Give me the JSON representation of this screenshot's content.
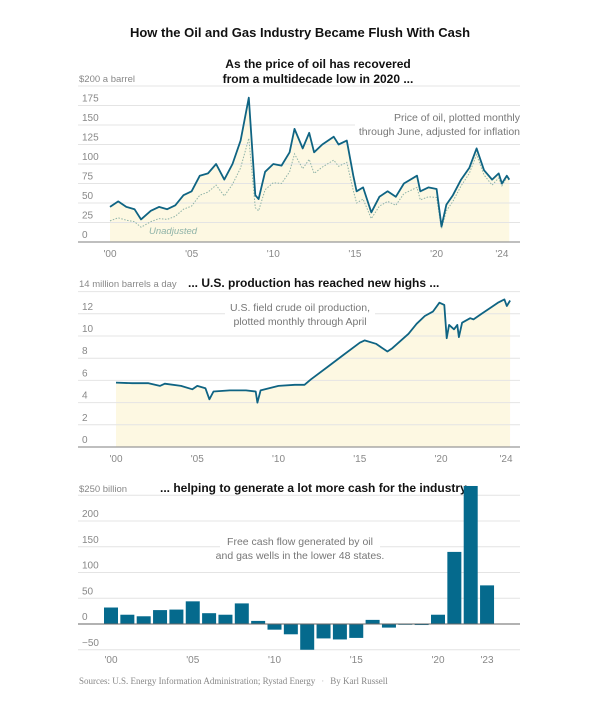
{
  "title": "How the Oil and Gas Industry Became Flush With Cash",
  "colors": {
    "line": "#0f6483",
    "fill": "#fdf8e2",
    "unadjusted": "#8fb3a8",
    "bar": "#056a8d"
  },
  "source": "Sources: U.S. Energy Information Administration; Rystad Energy",
  "byline": "By Karl Russell",
  "chart_data": [
    {
      "type": "line",
      "heading": [
        "As the price of oil has recovered",
        "from a multidecade low in 2020 ..."
      ],
      "ylabel": "$200 a barrel",
      "note": [
        "Price of oil, plotted monthly",
        "through June, adjusted for inflation"
      ],
      "ylim": [
        0,
        200
      ],
      "yticks": [
        "175",
        "150",
        "125",
        "100",
        "75",
        "50",
        "25",
        "0"
      ],
      "xticks": [
        "'00",
        "'05",
        "'10",
        "'15",
        "'20",
        "'24"
      ],
      "xtick_years": [
        2000,
        2005,
        2010,
        2015,
        2020,
        2024
      ],
      "grid": true,
      "series": [
        {
          "label": "",
          "points": [
            [
              2000.0,
              45
            ],
            [
              2000.5,
              52
            ],
            [
              2001.0,
              45
            ],
            [
              2001.5,
              42
            ],
            [
              2001.9,
              29
            ],
            [
              2002.5,
              40
            ],
            [
              2003.0,
              45
            ],
            [
              2003.5,
              42
            ],
            [
              2004.0,
              47
            ],
            [
              2004.5,
              60
            ],
            [
              2005.0,
              65
            ],
            [
              2005.5,
              85
            ],
            [
              2006.0,
              88
            ],
            [
              2006.5,
              100
            ],
            [
              2007.0,
              80
            ],
            [
              2007.5,
              100
            ],
            [
              2008.0,
              130
            ],
            [
              2008.5,
              185
            ],
            [
              2008.9,
              60
            ],
            [
              2009.1,
              55
            ],
            [
              2009.5,
              90
            ],
            [
              2010.0,
              100
            ],
            [
              2010.5,
              98
            ],
            [
              2011.0,
              115
            ],
            [
              2011.3,
              145
            ],
            [
              2011.8,
              120
            ],
            [
              2012.2,
              140
            ],
            [
              2012.5,
              115
            ],
            [
              2013.0,
              125
            ],
            [
              2013.7,
              135
            ],
            [
              2014.0,
              125
            ],
            [
              2014.5,
              130
            ],
            [
              2014.9,
              85
            ],
            [
              2015.1,
              65
            ],
            [
              2015.5,
              70
            ],
            [
              2016.0,
              38
            ],
            [
              2016.5,
              58
            ],
            [
              2017.0,
              65
            ],
            [
              2017.5,
              58
            ],
            [
              2018.0,
              75
            ],
            [
              2018.8,
              85
            ],
            [
              2019.0,
              65
            ],
            [
              2019.5,
              70
            ],
            [
              2020.0,
              68
            ],
            [
              2020.3,
              20
            ],
            [
              2020.6,
              48
            ],
            [
              2021.0,
              60
            ],
            [
              2021.5,
              80
            ],
            [
              2022.0,
              95
            ],
            [
              2022.45,
              120
            ],
            [
              2022.9,
              92
            ],
            [
              2023.4,
              80
            ],
            [
              2023.8,
              88
            ],
            [
              2024.0,
              75
            ],
            [
              2024.3,
              85
            ],
            [
              2024.45,
              80
            ]
          ]
        },
        {
          "label": "Unadjusted",
          "points": [
            [
              2000.0,
              27
            ],
            [
              2000.5,
              31
            ],
            [
              2001.0,
              28
            ],
            [
              2001.5,
              26
            ],
            [
              2001.9,
              19
            ],
            [
              2002.5,
              26
            ],
            [
              2003.0,
              30
            ],
            [
              2003.5,
              29
            ],
            [
              2004.0,
              33
            ],
            [
              2004.5,
              42
            ],
            [
              2005.0,
              46
            ],
            [
              2005.5,
              60
            ],
            [
              2006.0,
              64
            ],
            [
              2006.5,
              73
            ],
            [
              2007.0,
              59
            ],
            [
              2007.5,
              74
            ],
            [
              2008.0,
              95
            ],
            [
              2008.5,
              133
            ],
            [
              2008.9,
              44
            ],
            [
              2009.1,
              40
            ],
            [
              2009.5,
              67
            ],
            [
              2010.0,
              76
            ],
            [
              2010.5,
              75
            ],
            [
              2011.0,
              90
            ],
            [
              2011.3,
              113
            ],
            [
              2011.8,
              94
            ],
            [
              2012.2,
              106
            ],
            [
              2012.5,
              88
            ],
            [
              2013.0,
              96
            ],
            [
              2013.7,
              105
            ],
            [
              2014.0,
              97
            ],
            [
              2014.5,
              102
            ],
            [
              2014.9,
              66
            ],
            [
              2015.1,
              50
            ],
            [
              2015.5,
              55
            ],
            [
              2016.0,
              30
            ],
            [
              2016.5,
              46
            ],
            [
              2017.0,
              52
            ],
            [
              2017.5,
              47
            ],
            [
              2018.0,
              62
            ],
            [
              2018.8,
              70
            ],
            [
              2019.0,
              54
            ],
            [
              2019.5,
              58
            ],
            [
              2020.0,
              57
            ],
            [
              2020.3,
              17
            ],
            [
              2020.6,
              40
            ],
            [
              2021.0,
              52
            ],
            [
              2021.5,
              72
            ],
            [
              2022.0,
              88
            ],
            [
              2022.45,
              112
            ],
            [
              2022.9,
              86
            ],
            [
              2023.4,
              73
            ],
            [
              2023.8,
              82
            ],
            [
              2024.0,
              72
            ],
            [
              2024.3,
              83
            ],
            [
              2024.45,
              79
            ]
          ]
        }
      ]
    },
    {
      "type": "area",
      "heading": [
        "... U.S. production has reached new highs ..."
      ],
      "ylabel": "14 million barrels a day",
      "note": [
        "U.S. field crude oil production,",
        "plotted monthly through April"
      ],
      "ylim": [
        0,
        14
      ],
      "yticks": [
        "12",
        "10",
        "8",
        "6",
        "4",
        "2",
        "0"
      ],
      "xticks": [
        "'00",
        "'05",
        "'10",
        "'15",
        "'20",
        "'24"
      ],
      "xtick_years": [
        2000,
        2005,
        2010,
        2015,
        2020,
        2024
      ],
      "grid": true,
      "points": [
        [
          2000.0,
          5.8
        ],
        [
          2001.0,
          5.75
        ],
        [
          2002.0,
          5.75
        ],
        [
          2002.7,
          5.5
        ],
        [
          2003.0,
          5.7
        ],
        [
          2004.0,
          5.5
        ],
        [
          2004.7,
          5.2
        ],
        [
          2005.0,
          5.5
        ],
        [
          2005.5,
          5.3
        ],
        [
          2005.75,
          4.3
        ],
        [
          2006.0,
          5.0
        ],
        [
          2007.0,
          5.1
        ],
        [
          2008.0,
          5.1
        ],
        [
          2008.6,
          5.0
        ],
        [
          2008.7,
          4.0
        ],
        [
          2008.9,
          5.1
        ],
        [
          2010.0,
          5.5
        ],
        [
          2011.0,
          5.6
        ],
        [
          2011.6,
          5.6
        ],
        [
          2012.0,
          6.1
        ],
        [
          2013.0,
          7.2
        ],
        [
          2014.0,
          8.3
        ],
        [
          2015.0,
          9.4
        ],
        [
          2015.3,
          9.6
        ],
        [
          2016.0,
          9.3
        ],
        [
          2016.7,
          8.6
        ],
        [
          2017.0,
          8.9
        ],
        [
          2018.0,
          10.2
        ],
        [
          2018.5,
          11.1
        ],
        [
          2019.0,
          11.8
        ],
        [
          2019.5,
          12.2
        ],
        [
          2019.9,
          13.0
        ],
        [
          2020.2,
          12.8
        ],
        [
          2020.35,
          9.8
        ],
        [
          2020.5,
          11.0
        ],
        [
          2020.8,
          10.6
        ],
        [
          2021.0,
          11.0
        ],
        [
          2021.1,
          9.9
        ],
        [
          2021.3,
          11.2
        ],
        [
          2021.8,
          11.6
        ],
        [
          2022.0,
          11.5
        ],
        [
          2022.5,
          12.0
        ],
        [
          2023.0,
          12.5
        ],
        [
          2023.5,
          13.0
        ],
        [
          2023.9,
          13.3
        ],
        [
          2024.05,
          12.7
        ],
        [
          2024.25,
          13.2
        ]
      ]
    },
    {
      "type": "bar",
      "heading": [
        "... helping to generate a lot more cash for the industry."
      ],
      "ylabel": "$250 billion",
      "note": [
        "Free cash flow generated by oil",
        "and gas wells in the lower 48 states."
      ],
      "ylim": [
        -50,
        250
      ],
      "yticks": [
        "200",
        "150",
        "100",
        "50",
        "0",
        "−50"
      ],
      "xticks": [
        "'00",
        "'05",
        "'10",
        "'15",
        "'20",
        "'23"
      ],
      "xtick_years": [
        2000,
        2005,
        2010,
        2015,
        2020,
        2023
      ],
      "grid": true,
      "categories": [
        2000,
        2001,
        2002,
        2003,
        2004,
        2005,
        2006,
        2007,
        2008,
        2009,
        2010,
        2011,
        2012,
        2013,
        2014,
        2015,
        2016,
        2017,
        2018,
        2019,
        2020,
        2021,
        2022,
        2023
      ],
      "values": [
        32,
        18,
        15,
        27,
        28,
        44,
        21,
        18,
        40,
        6,
        -11,
        -20,
        -50,
        -28,
        -30,
        -27,
        8,
        -7,
        -1,
        -2,
        18,
        140,
        268,
        75
      ]
    }
  ]
}
